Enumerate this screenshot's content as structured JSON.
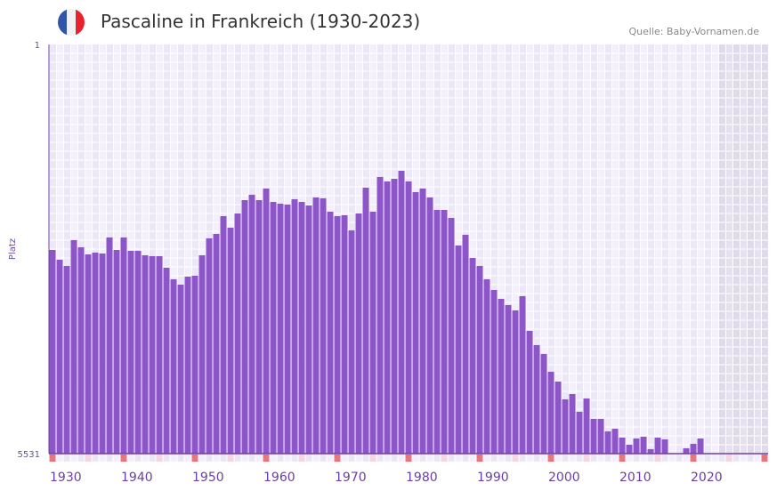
{
  "header": {
    "title": "Pascaline in Frankreich (1930-2023)",
    "source": "Quelle: Baby-Vornamen.de",
    "flag_icon": "france-flag-icon"
  },
  "colors": {
    "bar": "#8e55c8",
    "axis": "#6b3fa0",
    "marker_strong": "#e8747c",
    "marker_light": "#f5d6e0",
    "shade": "#e3deec"
  },
  "chart_data": {
    "type": "bar",
    "title": "Pascaline in Frankreich (1930-2023)",
    "ylabel": "Platz",
    "xlabel": "",
    "ylim": [
      5531,
      1
    ],
    "y_ticks": [
      "1",
      "5531"
    ],
    "x_ticks": [
      "1930",
      "1940",
      "1950",
      "1960",
      "1970",
      "1980",
      "1990",
      "2000",
      "2010",
      "2020"
    ],
    "x_range": [
      1930,
      2030
    ],
    "projection_from": 2024,
    "years": [
      1930,
      1931,
      1932,
      1933,
      1934,
      1935,
      1936,
      1937,
      1938,
      1939,
      1940,
      1941,
      1942,
      1943,
      1944,
      1945,
      1946,
      1947,
      1948,
      1949,
      1950,
      1951,
      1952,
      1953,
      1954,
      1955,
      1956,
      1957,
      1958,
      1959,
      1960,
      1961,
      1962,
      1963,
      1964,
      1965,
      1966,
      1967,
      1968,
      1969,
      1970,
      1971,
      1972,
      1973,
      1974,
      1975,
      1976,
      1977,
      1978,
      1979,
      1980,
      1981,
      1982,
      1983,
      1984,
      1985,
      1986,
      1987,
      1988,
      1989,
      1990,
      1991,
      1992,
      1993,
      1994,
      1995,
      1996,
      1997,
      1998,
      1999,
      2000,
      2001,
      2002,
      2003,
      2004,
      2005,
      2006,
      2007,
      2008,
      2009,
      2010,
      2011,
      2012,
      2013,
      2014,
      2015,
      2016,
      2017,
      2018,
      2019,
      2020,
      2021,
      2022,
      2023
    ],
    "values": [
      2778,
      2910,
      2994,
      2645,
      2742,
      2838,
      2814,
      2826,
      2609,
      2778,
      2609,
      2790,
      2790,
      2850,
      2862,
      2862,
      3018,
      3174,
      3246,
      3138,
      3126,
      2850,
      2621,
      2561,
      2321,
      2477,
      2285,
      2105,
      2032,
      2105,
      1948,
      2129,
      2153,
      2165,
      2092,
      2129,
      2177,
      2068,
      2080,
      2261,
      2321,
      2309,
      2513,
      2285,
      1936,
      2261,
      1792,
      1852,
      1816,
      1708,
      1852,
      1996,
      1948,
      2068,
      2237,
      2237,
      2345,
      2718,
      2573,
      2886,
      2994,
      3174,
      3319,
      3439,
      3523,
      3595,
      3403,
      3871,
      4064,
      4184,
      4424,
      4557,
      4797,
      4725,
      4965,
      4785,
      5061,
      5061,
      5230,
      5194,
      5314,
      5410,
      5326,
      5302,
      5470,
      5314,
      5338,
      null,
      null,
      5458,
      5398,
      5326,
      null,
      null
    ],
    "grid": true
  }
}
